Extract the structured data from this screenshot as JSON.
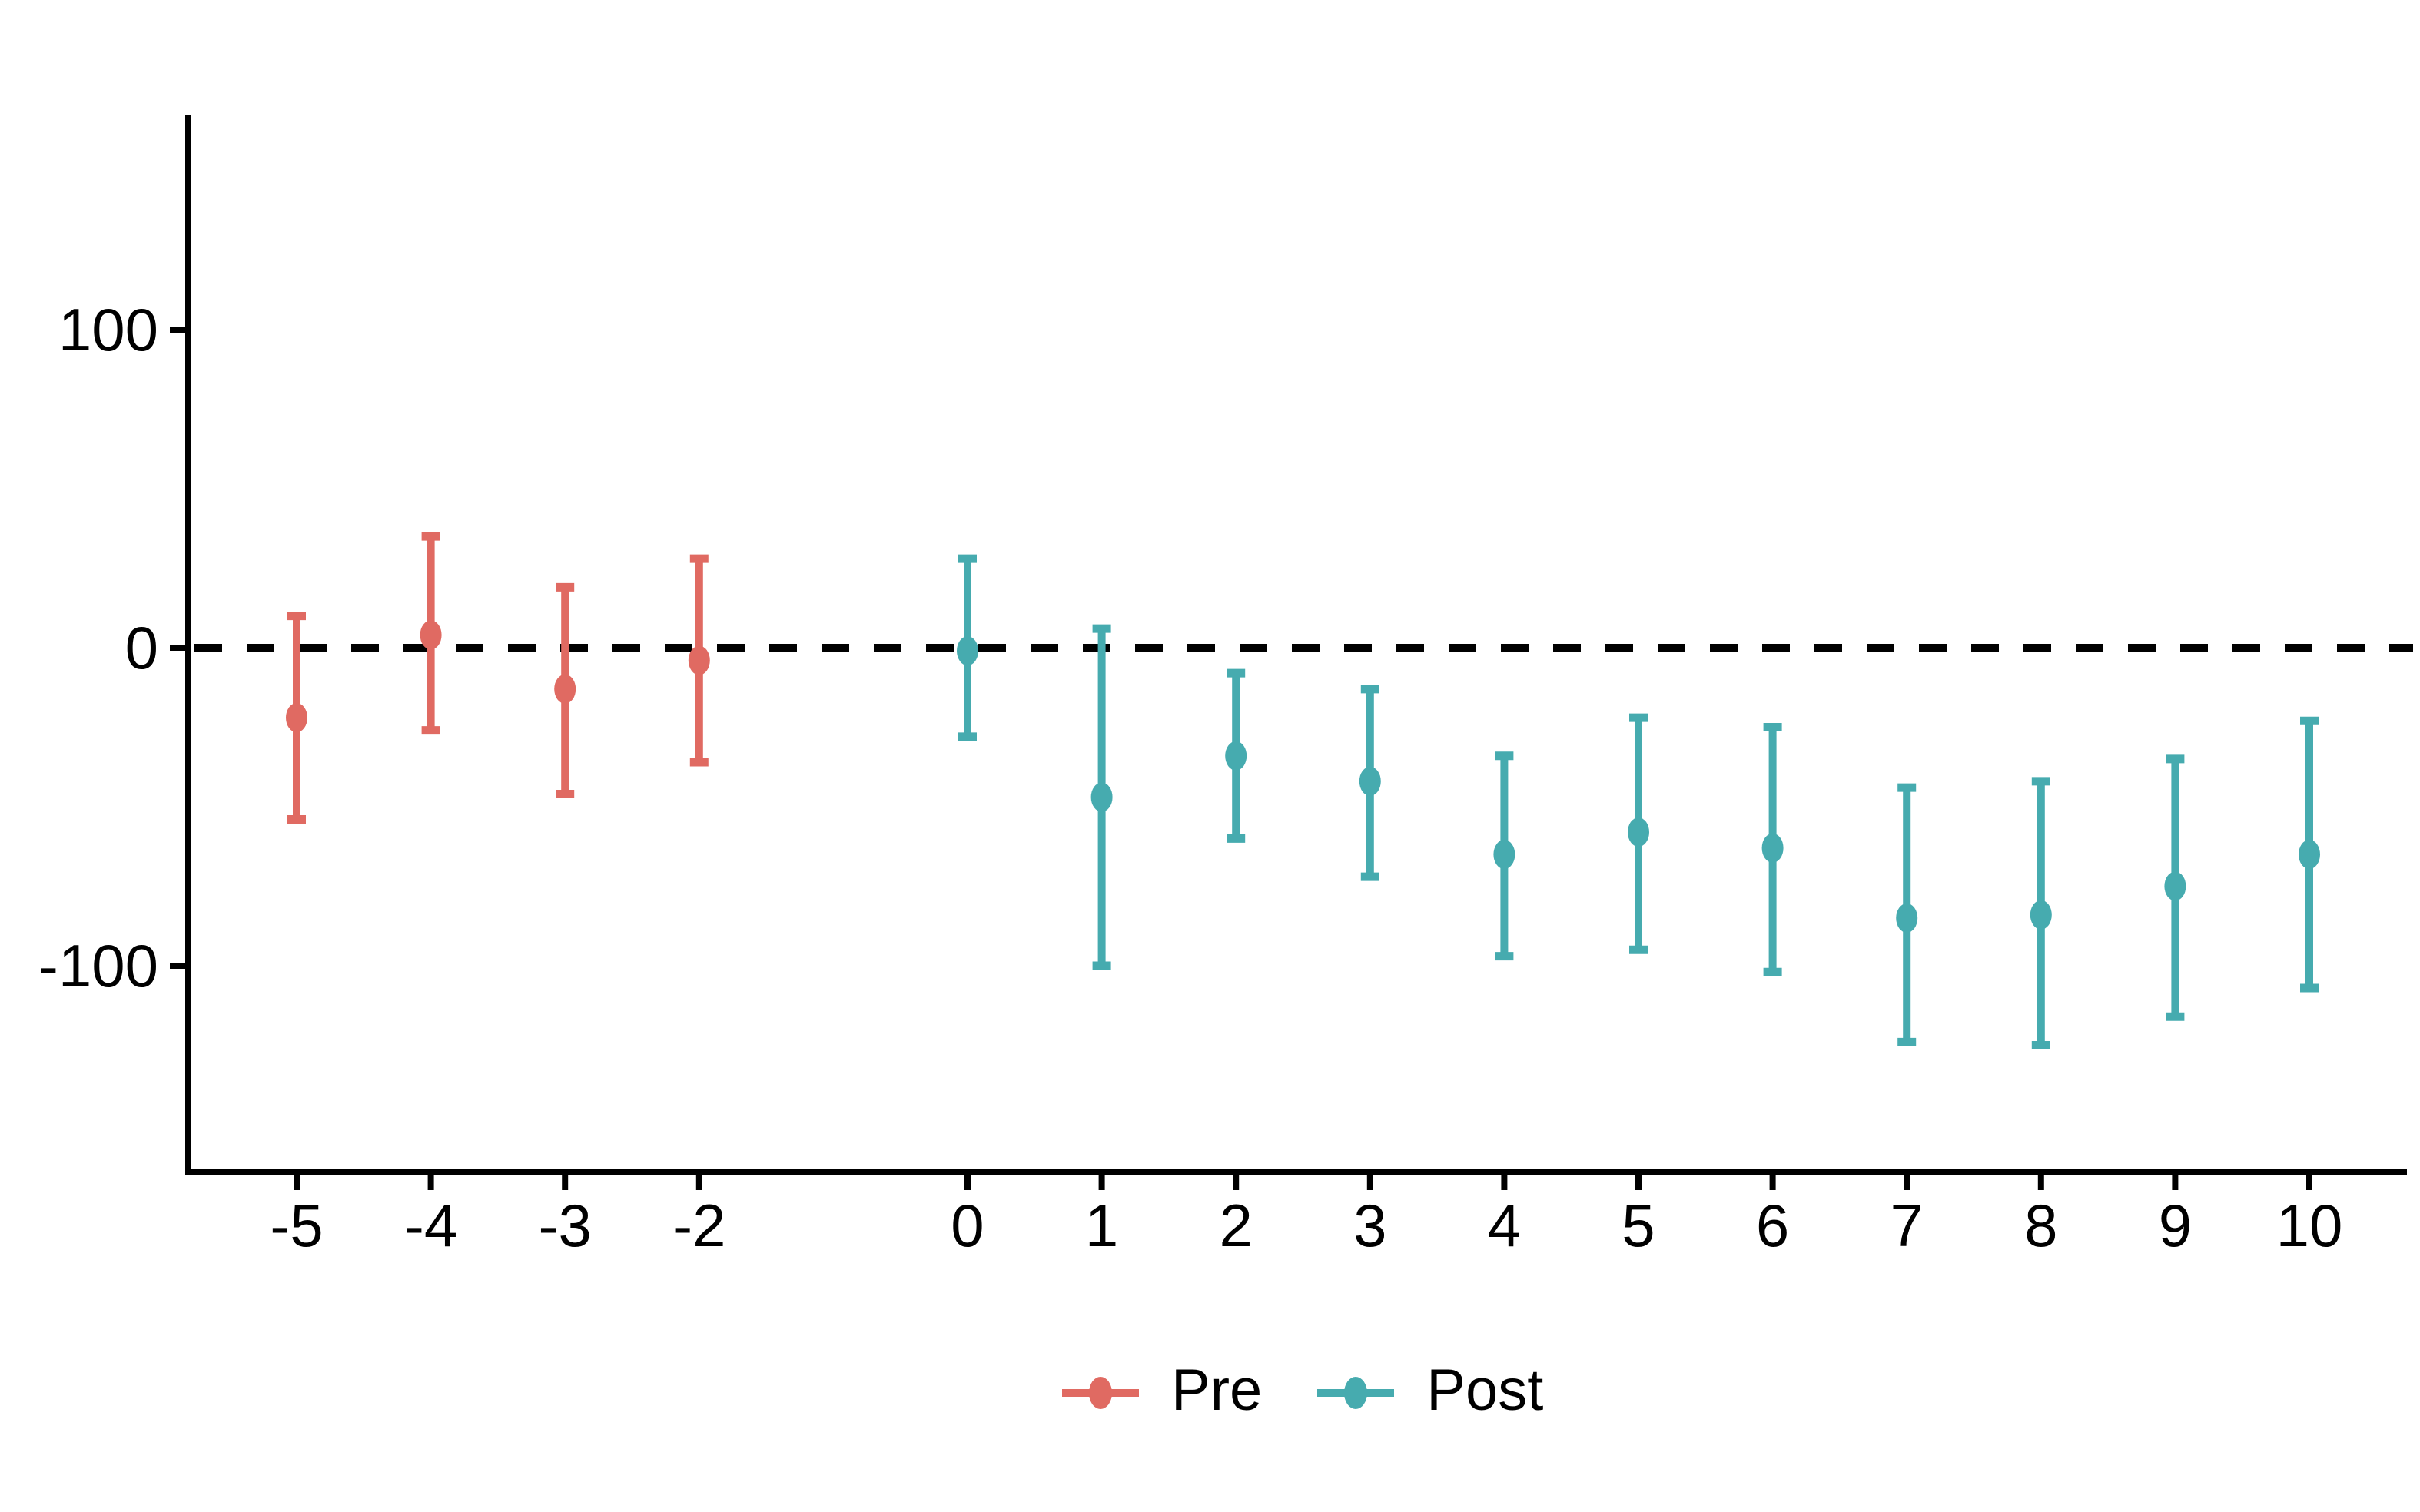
{
  "chart_data": {
    "type": "scatter",
    "subtype": "event-study-pointrange",
    "title": "",
    "xlabel": "",
    "ylabel": "",
    "x_ticks": [
      -5,
      -4,
      -3,
      -2,
      0,
      1,
      2,
      3,
      4,
      5,
      6,
      7,
      8,
      9,
      10
    ],
    "x_tick_note": "no tick at -1 (omitted reference period)",
    "y_ticks": [
      100,
      0,
      -100
    ],
    "xlim": [
      -5.8,
      10.8
    ],
    "ylim": [
      -165,
      167
    ],
    "grid": false,
    "zero_line": {
      "value": 0,
      "style": "dashed",
      "color": "#000000"
    },
    "legend_position": "bottom-center",
    "series": [
      {
        "name": "Pre",
        "color": "#E06A62",
        "points": [
          {
            "x": -5,
            "y": -22,
            "lo": -54,
            "hi": 10
          },
          {
            "x": -4,
            "y": 4,
            "lo": -26,
            "hi": 35
          },
          {
            "x": -3,
            "y": -13,
            "lo": -46,
            "hi": 19
          },
          {
            "x": -2,
            "y": -4,
            "lo": -36,
            "hi": 28
          }
        ]
      },
      {
        "name": "Post",
        "color": "#46ABAF",
        "points": [
          {
            "x": 0,
            "y": -1,
            "lo": -28,
            "hi": 28
          },
          {
            "x": 1,
            "y": -47,
            "lo": -100,
            "hi": 6
          },
          {
            "x": 2,
            "y": -34,
            "lo": -60,
            "hi": -8
          },
          {
            "x": 3,
            "y": -42,
            "lo": -72,
            "hi": -13
          },
          {
            "x": 4,
            "y": -65,
            "lo": -97,
            "hi": -34
          },
          {
            "x": 5,
            "y": -58,
            "lo": -95,
            "hi": -22
          },
          {
            "x": 6,
            "y": -63,
            "lo": -102,
            "hi": -25
          },
          {
            "x": 7,
            "y": -85,
            "lo": -124,
            "hi": -44
          },
          {
            "x": 8,
            "y": -84,
            "lo": -125,
            "hi": -42
          },
          {
            "x": 9,
            "y": -75,
            "lo": -116,
            "hi": -35
          },
          {
            "x": 10,
            "y": -65,
            "lo": -107,
            "hi": -23
          }
        ]
      }
    ]
  },
  "legend": {
    "items": [
      {
        "label": "Pre",
        "color": "#E06A62"
      },
      {
        "label": "Post",
        "color": "#46ABAF"
      }
    ]
  },
  "colors": {
    "pre": "#E06A62",
    "post": "#46ABAF",
    "axis": "#000000",
    "text": "#000000",
    "background": "#ffffff"
  }
}
